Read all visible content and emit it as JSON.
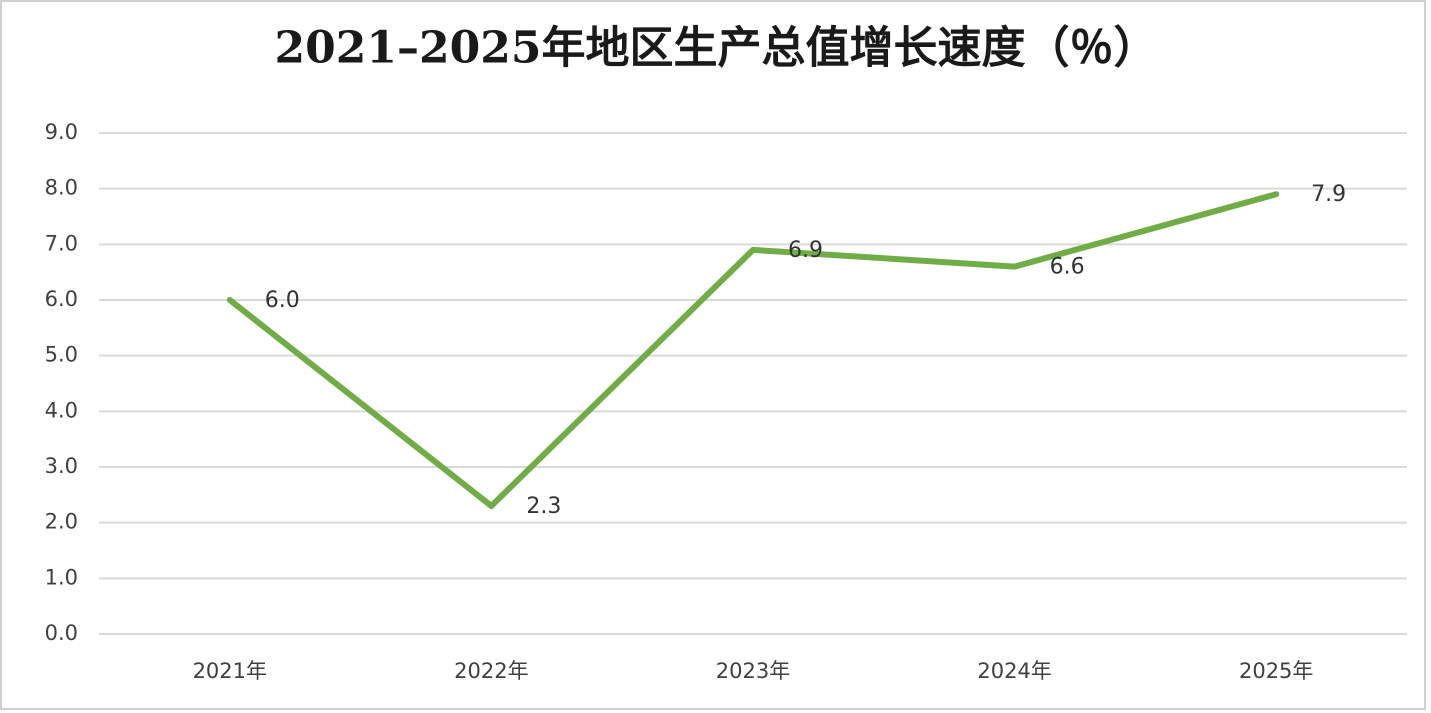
{
  "chart_data": {
    "type": "line",
    "title": "2021–2025年地区生产总值增长速度（％）",
    "categories": [
      "2021年",
      "2022年",
      "2023年",
      "2024年",
      "2025年"
    ],
    "series": [
      {
        "name": "地区生产总值增长速度",
        "color": "#70ad47",
        "values": [
          6.0,
          2.3,
          6.9,
          6.6,
          7.9
        ],
        "value_labels": [
          "6.0",
          "2.3",
          "6.9",
          "6.6",
          "7.9"
        ]
      }
    ],
    "ylim": [
      0,
      9
    ],
    "yticks": [
      {
        "value": 0,
        "label": "0.0"
      },
      {
        "value": 1,
        "label": "1.0"
      },
      {
        "value": 2,
        "label": "2.0"
      },
      {
        "value": 3,
        "label": "3.0"
      },
      {
        "value": 4,
        "label": "4.0"
      },
      {
        "value": 5,
        "label": "5.0"
      },
      {
        "value": 6,
        "label": "6.0"
      },
      {
        "value": 7,
        "label": "7.0"
      },
      {
        "value": 8,
        "label": "8.0"
      },
      {
        "value": 9,
        "label": "9.0"
      }
    ],
    "grid": true,
    "legend": false
  }
}
